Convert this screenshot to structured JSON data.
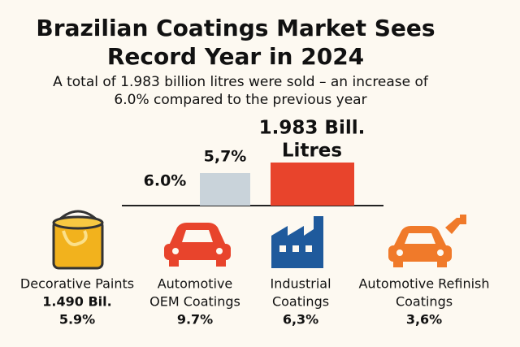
{
  "header": {
    "title_lines": [
      "Brazilian Coatings Market Sees",
      "Record Year in 2024"
    ],
    "subtitle_lines": [
      "A total of 1.983 billion litres were sold – an increase of",
      "6.0% compared to the previous year"
    ]
  },
  "highlights": {
    "growth": "6.0%",
    "previous_growth": "5,7%",
    "volume_lines": [
      "1.983 Bill.",
      "Litres"
    ]
  },
  "segments": [
    {
      "name_lines": [
        "Decorative Paints"
      ],
      "volume": "1.490 Bil.",
      "share": "5.9%"
    },
    {
      "name_lines": [
        "Automotive",
        "OEM Coatings"
      ],
      "share": "9.7%"
    },
    {
      "name_lines": [
        "Industrial",
        "Coatings"
      ],
      "share": "6,3%"
    },
    {
      "name_lines": [
        "Automotive Refinish",
        "Coatings"
      ],
      "share": "3,6%"
    }
  ]
}
